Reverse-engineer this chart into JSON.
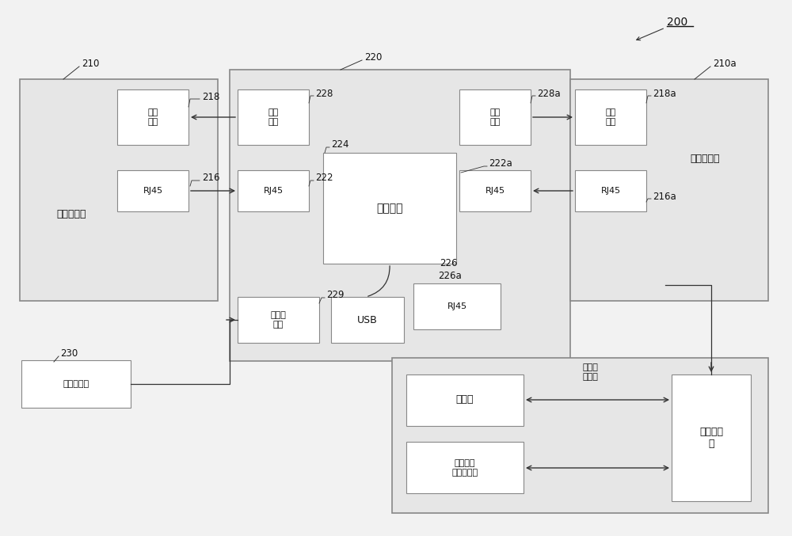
{
  "bg": "#f2f2f2",
  "box_fc": "#ffffff",
  "box_ec": "#888888",
  "outer_fc": "#e6e6e6",
  "outer_ec": "#aaaaaa",
  "tc": "#111111",
  "ac": "#333333",
  "fig_w": 10.0,
  "fig_h": 6.77,
  "dpi": 100,
  "zh": {
    "cam1": "第一相机板",
    "cam2": "第二相机板",
    "power_port": "电源\n接口",
    "rj45": "RJ45",
    "proc": "处理单元",
    "usb": "USB",
    "power_in": "电源输\n入端",
    "adapter": "电源适配器",
    "browser": "浏览器\n功能端",
    "display": "显示器",
    "keyboard": "键盘、鼠\n标、打印机",
    "mini_pc": "小型计算\n机"
  },
  "nums": {
    "n200": "200",
    "n210": "210",
    "n210a": "210a",
    "n220": "220",
    "n216": "216",
    "n216a": "216a",
    "n218": "218",
    "n218a": "218a",
    "n222": "222",
    "n222a": "222a",
    "n224": "224",
    "n226": "226",
    "n226a": "226a",
    "n228": "228",
    "n228a": "228a",
    "n229": "229",
    "n230": "230"
  }
}
